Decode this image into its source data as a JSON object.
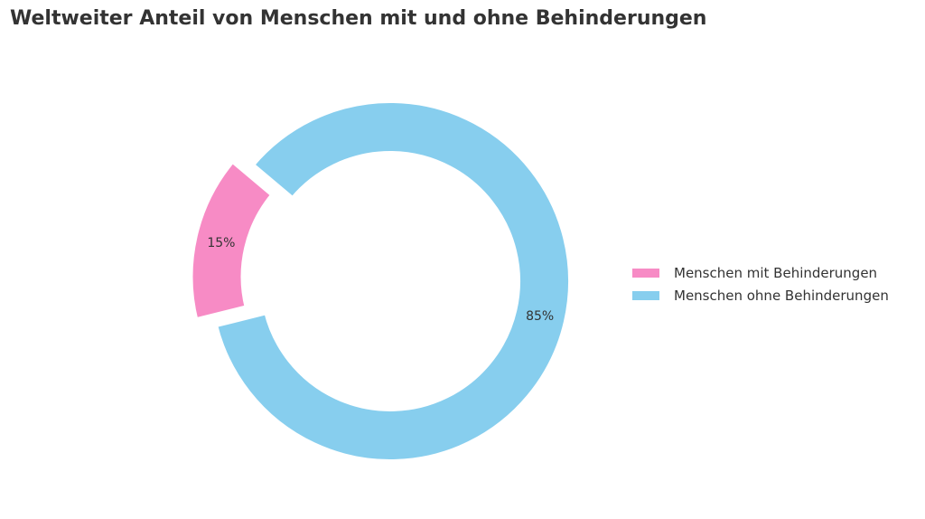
{
  "chart_data": {
    "type": "pie",
    "donut": true,
    "title": "Weltweiter Anteil von Menschen mit und ohne Behinderungen",
    "categories": [
      "Menschen mit Behinderungen",
      "Menschen ohne Behinderungen"
    ],
    "values": [
      15,
      85
    ],
    "labels": [
      "15%",
      "85%"
    ],
    "colors": [
      "#f78bc5",
      "#87ceee"
    ],
    "explode": [
      true,
      false
    ],
    "legend": "right"
  }
}
